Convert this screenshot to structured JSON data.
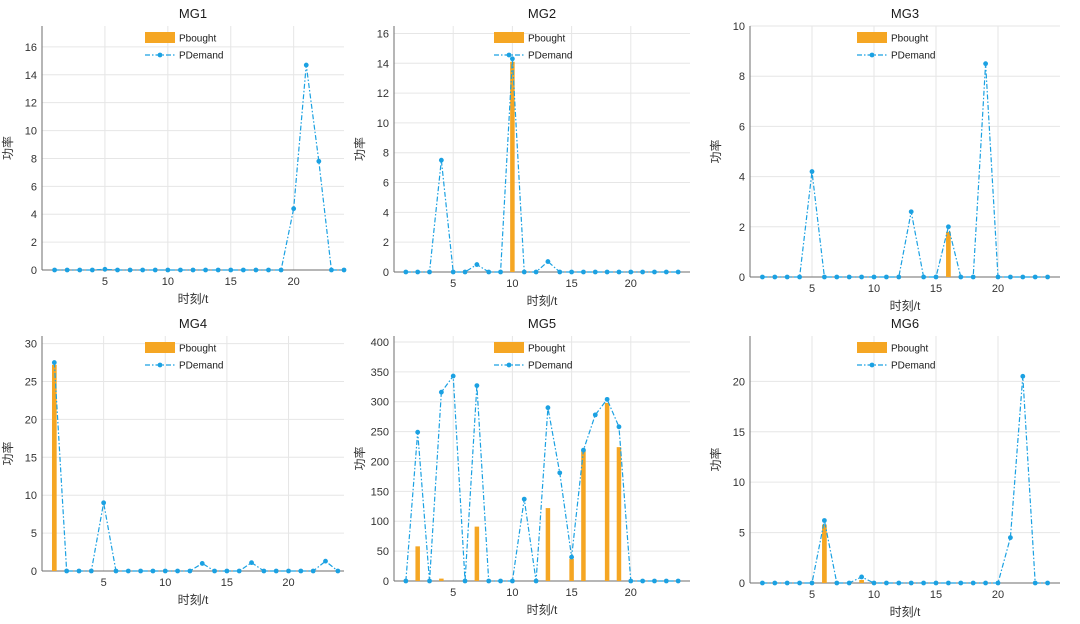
{
  "colors": {
    "bar": "#F5A623",
    "line": "#1BA1E2"
  },
  "chart_data": [
    {
      "type": "bar+line",
      "title": "MG1",
      "xlabel": "时刻/t",
      "ylabel": "功率",
      "xlim": [
        0,
        24
      ],
      "ylim": [
        0,
        17.5
      ],
      "yticks": [
        0,
        2,
        4,
        6,
        8,
        10,
        12,
        14,
        16
      ],
      "xticks": [
        5,
        10,
        15,
        20
      ],
      "legend": [
        "Pbought",
        "PDemand"
      ],
      "legend_position": "top-center",
      "grid": true,
      "x": [
        1,
        2,
        3,
        4,
        5,
        6,
        7,
        8,
        9,
        10,
        11,
        12,
        13,
        14,
        15,
        16,
        17,
        18,
        19,
        20,
        21,
        22,
        23,
        24
      ],
      "series": [
        {
          "name": "Pbought",
          "type": "bar",
          "values": [
            0,
            0,
            0,
            0,
            0,
            0,
            0,
            0,
            0,
            0,
            0,
            0,
            0,
            0,
            0,
            0,
            0,
            0,
            0,
            0,
            0,
            0,
            0,
            0
          ]
        },
        {
          "name": "PDemand",
          "type": "line",
          "values": [
            0,
            0,
            0,
            0,
            0.05,
            0,
            0,
            0,
            0,
            0,
            0,
            0,
            0,
            0,
            0,
            0,
            0,
            0,
            0,
            4.4,
            14.7,
            7.8,
            0,
            0
          ]
        }
      ]
    },
    {
      "type": "bar+line",
      "title": "MG2",
      "xlabel": "时刻/t",
      "ylabel": "功率",
      "xlim": [
        0,
        25
      ],
      "ylim": [
        0,
        16.5
      ],
      "yticks": [
        0,
        2,
        4,
        6,
        8,
        10,
        12,
        14,
        16
      ],
      "xticks": [
        5,
        10,
        15,
        20
      ],
      "legend": [
        "Pbought",
        "PDemand"
      ],
      "legend_position": "top-center",
      "grid": true,
      "x": [
        1,
        2,
        3,
        4,
        5,
        6,
        7,
        8,
        9,
        10,
        11,
        12,
        13,
        14,
        15,
        16,
        17,
        18,
        19,
        20,
        21,
        22,
        23,
        24
      ],
      "series": [
        {
          "name": "Pbought",
          "type": "bar",
          "values": [
            0,
            0,
            0,
            0,
            0,
            0,
            0,
            0,
            0,
            14.1,
            0,
            0,
            0,
            0,
            0,
            0,
            0,
            0,
            0,
            0,
            0,
            0,
            0,
            0
          ]
        },
        {
          "name": "PDemand",
          "type": "line",
          "values": [
            0,
            0,
            0,
            7.5,
            0,
            0,
            0.5,
            0,
            0,
            14.3,
            0,
            0,
            0.7,
            0,
            0,
            0,
            0,
            0,
            0,
            0,
            0,
            0,
            0,
            0
          ]
        }
      ]
    },
    {
      "type": "bar+line",
      "title": "MG3",
      "xlabel": "时刻/t",
      "ylabel": "功率",
      "xlim": [
        0,
        25
      ],
      "ylim": [
        0,
        10
      ],
      "yticks": [
        0,
        2,
        4,
        6,
        8,
        10
      ],
      "xticks": [
        5,
        10,
        15,
        20
      ],
      "legend": [
        "Pbought",
        "PDemand"
      ],
      "legend_position": "top-center",
      "grid": true,
      "x": [
        1,
        2,
        3,
        4,
        5,
        6,
        7,
        8,
        9,
        10,
        11,
        12,
        13,
        14,
        15,
        16,
        17,
        18,
        19,
        20,
        21,
        22,
        23,
        24
      ],
      "series": [
        {
          "name": "Pbought",
          "type": "bar",
          "values": [
            0,
            0,
            0,
            0,
            0,
            0,
            0,
            0,
            0,
            0,
            0,
            0,
            0,
            0,
            0,
            1.8,
            0,
            0,
            0,
            0,
            0,
            0,
            0,
            0
          ]
        },
        {
          "name": "PDemand",
          "type": "line",
          "values": [
            0,
            0,
            0,
            0,
            4.2,
            0,
            0,
            0,
            0,
            0,
            0,
            0,
            2.6,
            0,
            0,
            2.0,
            0,
            0,
            8.5,
            0,
            0,
            0,
            0,
            0
          ]
        }
      ]
    },
    {
      "type": "bar+line",
      "title": "MG4",
      "xlabel": "时刻/t",
      "ylabel": "功率",
      "xlim": [
        0,
        24.5
      ],
      "ylim": [
        0,
        31
      ],
      "yticks": [
        0,
        5,
        10,
        15,
        20,
        25,
        30
      ],
      "xticks": [
        5,
        10,
        15,
        20
      ],
      "legend": [
        "Pbought",
        "PDemand"
      ],
      "legend_position": "top-center",
      "grid": true,
      "x": [
        1,
        2,
        3,
        4,
        5,
        6,
        7,
        8,
        9,
        10,
        11,
        12,
        13,
        14,
        15,
        16,
        17,
        18,
        19,
        20,
        21,
        22,
        23,
        24
      ],
      "series": [
        {
          "name": "Pbought",
          "type": "bar",
          "values": [
            27.2,
            0,
            0,
            0,
            0,
            0,
            0,
            0,
            0,
            0,
            0,
            0,
            0,
            0,
            0,
            0,
            0,
            0,
            0,
            0,
            0,
            0,
            0,
            0
          ]
        },
        {
          "name": "PDemand",
          "type": "line",
          "values": [
            27.5,
            0,
            0,
            0,
            9.0,
            0,
            0,
            0,
            0,
            0,
            0,
            0,
            1.0,
            0,
            0,
            0,
            1.1,
            0,
            0,
            0,
            0,
            0,
            1.3,
            0
          ]
        }
      ]
    },
    {
      "type": "bar+line",
      "title": "MG5",
      "xlabel": "时刻/t",
      "ylabel": "功率",
      "xlim": [
        0,
        25
      ],
      "ylim": [
        0,
        410
      ],
      "yticks": [
        0,
        50,
        100,
        150,
        200,
        250,
        300,
        350,
        400
      ],
      "xticks": [
        5,
        10,
        15,
        20
      ],
      "legend": [
        "Pbought",
        "PDemand"
      ],
      "legend_position": "top-center",
      "grid": true,
      "x": [
        1,
        2,
        3,
        4,
        5,
        6,
        7,
        8,
        9,
        10,
        11,
        12,
        13,
        14,
        15,
        16,
        17,
        18,
        19,
        20,
        21,
        22,
        23,
        24
      ],
      "series": [
        {
          "name": "Pbought",
          "type": "bar",
          "values": [
            0,
            58,
            0,
            4,
            0,
            0,
            91,
            0,
            0,
            0,
            0,
            0,
            122,
            0,
            37,
            218,
            0,
            298,
            224,
            0,
            0,
            0,
            0,
            0
          ]
        },
        {
          "name": "PDemand",
          "type": "line",
          "values": [
            0,
            249,
            0,
            316,
            343,
            0,
            327,
            0,
            0,
            0,
            137,
            0,
            290,
            181,
            40,
            219,
            278,
            304,
            258,
            0,
            0,
            0,
            0,
            0
          ]
        }
      ]
    },
    {
      "type": "bar+line",
      "title": "MG6",
      "xlabel": "时刻/t",
      "ylabel": "功率",
      "xlim": [
        0,
        25
      ],
      "ylim": [
        0,
        24.5
      ],
      "yticks": [
        0,
        5,
        10,
        15,
        20
      ],
      "xticks": [
        5,
        10,
        15,
        20
      ],
      "legend": [
        "Pbought",
        "PDemand"
      ],
      "legend_position": "top-center",
      "grid": true,
      "x": [
        1,
        2,
        3,
        4,
        5,
        6,
        7,
        8,
        9,
        10,
        11,
        12,
        13,
        14,
        15,
        16,
        17,
        18,
        19,
        20,
        21,
        22,
        23,
        24
      ],
      "series": [
        {
          "name": "Pbought",
          "type": "bar",
          "values": [
            0,
            0,
            0,
            0,
            0,
            5.8,
            0,
            0,
            0.3,
            0,
            0,
            0,
            0,
            0,
            0,
            0,
            0,
            0,
            0,
            0,
            0,
            0,
            0,
            0
          ]
        },
        {
          "name": "PDemand",
          "type": "line",
          "values": [
            0,
            0,
            0,
            0,
            0,
            6.2,
            0,
            0,
            0.6,
            0,
            0,
            0,
            0,
            0,
            0,
            0,
            0,
            0,
            0,
            0,
            4.5,
            20.5,
            0,
            0
          ]
        }
      ]
    }
  ]
}
